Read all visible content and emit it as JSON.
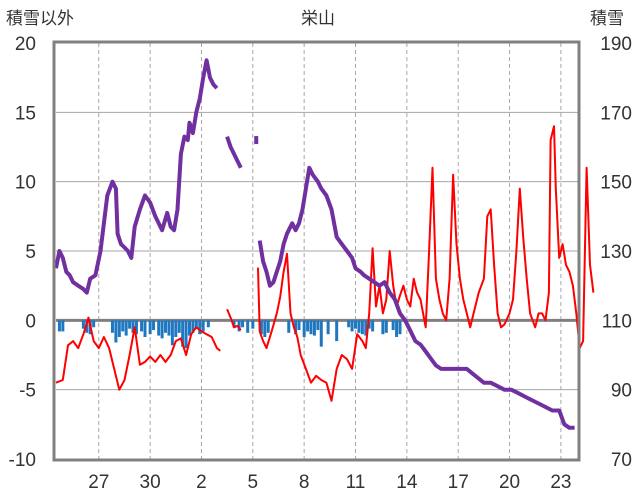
{
  "chart_data": {
    "type": "line",
    "title": "栄山",
    "left_axis_title": "積雪以外",
    "right_axis_title": "積雪",
    "left_axis": {
      "min": -10,
      "max": 20,
      "ticks": [
        "20",
        "15",
        "10",
        "5",
        "0",
        "-5",
        "-10"
      ]
    },
    "right_axis": {
      "min": 70,
      "max": 190,
      "ticks": [
        "190",
        "170",
        "150",
        "130",
        "110",
        "90",
        "70"
      ]
    },
    "x_tick_labels": [
      "27",
      "30",
      "2",
      "5",
      "8",
      "11",
      "14",
      "17",
      "20",
      "23"
    ],
    "x_tick_days": [
      2.5,
      5.5,
      8.5,
      11.5,
      14.5,
      17.5,
      20.5,
      23.5,
      26.5,
      29.5
    ],
    "x_range_days": [
      0,
      30.5
    ],
    "grid": true,
    "colors": {
      "snow_depth": "#7030a0",
      "temperature": "#ff0000",
      "precipitation": "#1f77c0",
      "zero_line": "#808080",
      "frame": "#808080",
      "grid": "#a6a6a6"
    },
    "series": [
      {
        "axis": "right",
        "points": [
          [
            0.0,
            125
          ],
          [
            0.2,
            130
          ],
          [
            0.4,
            128
          ],
          [
            0.6,
            124
          ],
          [
            0.8,
            123
          ],
          [
            1.0,
            121
          ],
          [
            1.3,
            120
          ],
          [
            1.6,
            119
          ],
          [
            1.8,
            118
          ],
          [
            2.0,
            122
          ],
          [
            2.3,
            123
          ],
          [
            2.6,
            130
          ],
          [
            2.8,
            138
          ],
          [
            3.0,
            146
          ],
          [
            3.3,
            150
          ],
          [
            3.5,
            148
          ],
          [
            3.6,
            135
          ],
          [
            3.8,
            132
          ],
          [
            4.0,
            131
          ],
          [
            4.2,
            130
          ],
          [
            4.4,
            128
          ],
          [
            4.6,
            137
          ],
          [
            4.9,
            142
          ],
          [
            5.2,
            146
          ],
          [
            5.5,
            144
          ],
          [
            5.8,
            140
          ],
          [
            6.0,
            138
          ],
          [
            6.2,
            136
          ],
          [
            6.5,
            141
          ],
          [
            6.7,
            137
          ],
          [
            6.9,
            136
          ],
          [
            7.1,
            142
          ],
          [
            7.3,
            158
          ],
          [
            7.5,
            163
          ],
          [
            7.7,
            162
          ],
          [
            7.8,
            167
          ],
          [
            8.0,
            164
          ],
          [
            8.2,
            170
          ],
          [
            8.4,
            174
          ],
          [
            8.6,
            180
          ],
          [
            8.8,
            185
          ],
          [
            9.0,
            180
          ],
          [
            9.2,
            178
          ],
          [
            9.4,
            177
          ]
        ],
        "points_b": [
          [
            10.0,
            163
          ],
          [
            10.2,
            160
          ],
          [
            10.4,
            158
          ],
          [
            10.6,
            156
          ],
          [
            10.8,
            154
          ]
        ],
        "points_c": [
          [
            11.7,
            162
          ]
        ],
        "points_d": [
          [
            11.9,
            133
          ],
          [
            12.1,
            127
          ],
          [
            12.3,
            124
          ],
          [
            12.5,
            120
          ],
          [
            12.7,
            121
          ],
          [
            12.9,
            124
          ],
          [
            13.1,
            127
          ],
          [
            13.3,
            132
          ],
          [
            13.5,
            135
          ],
          [
            13.8,
            138
          ],
          [
            14.0,
            136
          ],
          [
            14.2,
            138
          ],
          [
            14.4,
            142
          ],
          [
            14.6,
            148
          ],
          [
            14.8,
            154
          ],
          [
            15.0,
            152
          ],
          [
            15.3,
            150
          ],
          [
            15.5,
            148
          ],
          [
            15.8,
            146
          ],
          [
            16.1,
            142
          ],
          [
            16.4,
            134
          ],
          [
            16.7,
            132
          ],
          [
            17.0,
            130
          ],
          [
            17.3,
            128
          ],
          [
            17.5,
            125
          ],
          [
            17.8,
            124
          ],
          [
            18.0,
            123
          ],
          [
            18.3,
            122
          ],
          [
            18.6,
            121
          ],
          [
            18.9,
            120
          ],
          [
            19.2,
            121
          ],
          [
            19.5,
            118
          ],
          [
            19.8,
            116
          ],
          [
            20.1,
            112
          ],
          [
            20.4,
            110
          ],
          [
            20.7,
            107
          ],
          [
            21.0,
            104
          ],
          [
            21.3,
            103
          ],
          [
            21.6,
            101
          ],
          [
            21.9,
            99
          ],
          [
            22.2,
            97
          ],
          [
            22.5,
            96
          ],
          [
            22.8,
            96
          ],
          [
            23.2,
            96
          ],
          [
            23.6,
            96
          ],
          [
            24.0,
            96
          ],
          [
            24.5,
            94
          ],
          [
            25.0,
            92
          ],
          [
            25.4,
            92
          ],
          [
            25.8,
            91
          ],
          [
            26.2,
            90
          ],
          [
            26.6,
            90
          ],
          [
            27.0,
            89
          ],
          [
            27.4,
            88
          ],
          [
            27.8,
            87
          ],
          [
            28.2,
            86
          ],
          [
            28.6,
            85
          ],
          [
            29.0,
            84
          ],
          [
            29.4,
            84
          ],
          [
            29.7,
            80
          ],
          [
            30.0,
            79
          ],
          [
            30.3,
            79
          ]
        ]
      },
      {
        "axis": "left",
        "points": [
          [
            0.0,
            -4.5
          ],
          [
            0.4,
            -4.3
          ],
          [
            0.7,
            -1.8
          ],
          [
            1.0,
            -1.5
          ],
          [
            1.3,
            -2.0
          ],
          [
            1.6,
            -1.0
          ],
          [
            1.9,
            0.2
          ],
          [
            2.2,
            -1.5
          ],
          [
            2.5,
            -2.0
          ],
          [
            2.8,
            -1.2
          ],
          [
            3.1,
            -2.0
          ],
          [
            3.4,
            -3.5
          ],
          [
            3.7,
            -5.0
          ],
          [
            4.0,
            -4.3
          ],
          [
            4.3,
            -2.5
          ],
          [
            4.6,
            -0.5
          ],
          [
            4.9,
            -3.2
          ],
          [
            5.2,
            -3.0
          ],
          [
            5.5,
            -2.6
          ],
          [
            5.8,
            -3.0
          ],
          [
            6.1,
            -2.5
          ],
          [
            6.4,
            -3.0
          ],
          [
            6.7,
            -2.5
          ],
          [
            7.0,
            -1.5
          ],
          [
            7.3,
            -1.3
          ],
          [
            7.6,
            -2.5
          ],
          [
            7.9,
            -1.0
          ],
          [
            8.2,
            -0.5
          ],
          [
            8.5,
            -0.8
          ],
          [
            8.8,
            -1.0
          ],
          [
            9.1,
            -1.2
          ],
          [
            9.4,
            -2.0
          ],
          [
            9.6,
            -2.2
          ]
        ],
        "points_b": [
          [
            10.0,
            0.8
          ],
          [
            10.2,
            0.2
          ],
          [
            10.4,
            -0.5
          ],
          [
            10.6,
            -0.4
          ],
          [
            10.8,
            -0.7
          ]
        ],
        "points_c": [
          [
            11.8,
            3.8
          ],
          [
            11.9,
            -0.8
          ],
          [
            12.1,
            -1.5
          ],
          [
            12.3,
            -2.0
          ],
          [
            12.6,
            -0.8
          ],
          [
            12.9,
            0.5
          ],
          [
            13.1,
            1.7
          ],
          [
            13.3,
            3.5
          ],
          [
            13.5,
            4.8
          ],
          [
            13.7,
            0.5
          ],
          [
            13.9,
            -0.5
          ],
          [
            14.1,
            -1.2
          ],
          [
            14.3,
            -2.5
          ],
          [
            14.6,
            -3.5
          ],
          [
            14.9,
            -4.5
          ],
          [
            15.2,
            -4.0
          ],
          [
            15.5,
            -4.3
          ],
          [
            15.8,
            -4.5
          ],
          [
            16.1,
            -5.8
          ],
          [
            16.4,
            -3.5
          ],
          [
            16.7,
            -2.5
          ],
          [
            17.0,
            -2.8
          ],
          [
            17.3,
            -3.5
          ],
          [
            17.6,
            -1.0
          ],
          [
            17.9,
            -1.5
          ],
          [
            18.1,
            -2.0
          ],
          [
            18.3,
            0.5
          ],
          [
            18.5,
            5.2
          ],
          [
            18.7,
            1.0
          ],
          [
            18.9,
            2.5
          ],
          [
            19.1,
            0.5
          ],
          [
            19.3,
            1.5
          ],
          [
            19.5,
            5.0
          ],
          [
            19.7,
            2.5
          ],
          [
            19.9,
            1.0
          ],
          [
            20.1,
            1.8
          ],
          [
            20.3,
            2.5
          ],
          [
            20.5,
            1.5
          ],
          [
            20.7,
            1.0
          ],
          [
            20.9,
            3.0
          ],
          [
            21.1,
            2.0
          ],
          [
            21.3,
            1.5
          ],
          [
            21.6,
            -0.5
          ],
          [
            21.8,
            5.0
          ],
          [
            22.0,
            11.0
          ],
          [
            22.2,
            3.0
          ],
          [
            22.4,
            1.5
          ],
          [
            22.6,
            0.5
          ],
          [
            22.8,
            0.0
          ],
          [
            23.0,
            3.0
          ],
          [
            23.2,
            10.5
          ],
          [
            23.4,
            5.5
          ],
          [
            23.6,
            3.0
          ],
          [
            23.8,
            1.5
          ],
          [
            24.0,
            0.5
          ],
          [
            24.2,
            -0.5
          ],
          [
            24.4,
            0.5
          ],
          [
            24.7,
            2.0
          ],
          [
            25.0,
            3.0
          ],
          [
            25.2,
            7.5
          ],
          [
            25.4,
            8.0
          ],
          [
            25.6,
            4.0
          ],
          [
            25.8,
            0.5
          ],
          [
            26.0,
            -0.5
          ],
          [
            26.2,
            -0.3
          ],
          [
            26.5,
            0.5
          ],
          [
            26.7,
            1.5
          ],
          [
            26.9,
            5.0
          ],
          [
            27.1,
            9.5
          ],
          [
            27.3,
            6.0
          ],
          [
            27.5,
            3.0
          ],
          [
            27.7,
            0.5
          ],
          [
            28.0,
            -0.5
          ],
          [
            28.2,
            0.5
          ],
          [
            28.4,
            0.5
          ],
          [
            28.6,
            0.0
          ],
          [
            28.8,
            2.0
          ],
          [
            28.9,
            13.0
          ],
          [
            29.1,
            14.0
          ],
          [
            29.2,
            9.5
          ],
          [
            29.4,
            4.5
          ],
          [
            29.6,
            5.5
          ],
          [
            29.8,
            4.0
          ],
          [
            30.0,
            3.5
          ],
          [
            30.2,
            2.5
          ],
          [
            30.4,
            0.5
          ],
          [
            30.6,
            -2.0
          ],
          [
            30.8,
            -1.5
          ],
          [
            31.0,
            11.0
          ],
          [
            31.2,
            4.0
          ],
          [
            31.4,
            2.0
          ]
        ]
      },
      {
        "axis": "left",
        "bars": [
          [
            0.2,
            -0.8
          ],
          [
            0.4,
            -0.8
          ],
          [
            1.6,
            -0.6
          ],
          [
            1.8,
            -0.9
          ],
          [
            2.0,
            -1.0
          ],
          [
            2.2,
            -0.5
          ],
          [
            3.3,
            -0.9
          ],
          [
            3.5,
            -1.6
          ],
          [
            3.7,
            -1.2
          ],
          [
            3.9,
            -0.8
          ],
          [
            4.1,
            -1.1
          ],
          [
            4.3,
            -0.6
          ],
          [
            4.5,
            -0.9
          ],
          [
            4.7,
            -1.0
          ],
          [
            5.0,
            -0.8
          ],
          [
            5.2,
            -1.2
          ],
          [
            5.5,
            -1.0
          ],
          [
            5.7,
            -0.7
          ],
          [
            6.0,
            -1.1
          ],
          [
            6.2,
            -1.3
          ],
          [
            6.4,
            -0.9
          ],
          [
            6.6,
            -1.1
          ],
          [
            6.8,
            -1.8
          ],
          [
            7.0,
            -1.2
          ],
          [
            7.2,
            -0.9
          ],
          [
            7.4,
            -1.9
          ],
          [
            7.6,
            -2.0
          ],
          [
            7.8,
            -1.1
          ],
          [
            8.0,
            -0.9
          ],
          [
            8.2,
            -0.6
          ],
          [
            8.4,
            -1.0
          ],
          [
            8.6,
            -0.8
          ],
          [
            8.9,
            -0.5
          ],
          [
            10.4,
            -0.5
          ],
          [
            10.7,
            -0.8
          ],
          [
            10.9,
            -0.5
          ],
          [
            11.2,
            -0.9
          ],
          [
            11.5,
            -0.6
          ],
          [
            12.0,
            -1.0
          ],
          [
            12.2,
            -1.2
          ],
          [
            12.4,
            -0.9
          ],
          [
            13.6,
            -0.9
          ],
          [
            14.0,
            -1.0
          ],
          [
            14.2,
            -0.7
          ],
          [
            14.5,
            -1.2
          ],
          [
            14.7,
            -0.8
          ],
          [
            14.9,
            -1.0
          ],
          [
            15.1,
            -1.1
          ],
          [
            15.3,
            -0.7
          ],
          [
            15.5,
            -1.9
          ],
          [
            15.9,
            -1.0
          ],
          [
            16.4,
            -1.5
          ],
          [
            17.1,
            -0.5
          ],
          [
            17.3,
            -0.8
          ],
          [
            17.5,
            -0.6
          ],
          [
            17.7,
            -0.9
          ],
          [
            17.9,
            -1.0
          ],
          [
            18.1,
            -1.1
          ],
          [
            18.3,
            -0.6
          ],
          [
            18.5,
            -0.8
          ],
          [
            19.1,
            -1.0
          ],
          [
            19.3,
            -0.9
          ],
          [
            19.7,
            -0.7
          ],
          [
            19.9,
            -1.2
          ],
          [
            20.1,
            -1.0
          ]
        ]
      }
    ]
  }
}
